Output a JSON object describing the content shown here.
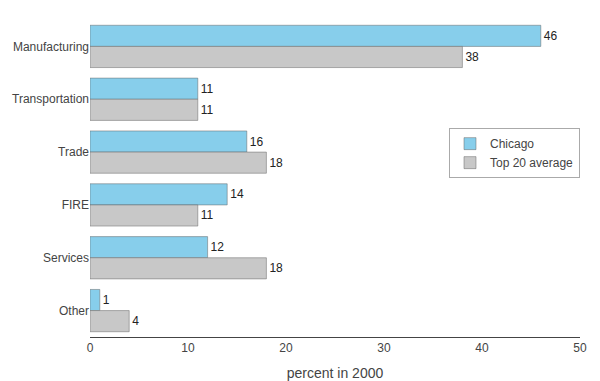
{
  "chart_data": {
    "type": "bar",
    "orientation": "horizontal",
    "categories": [
      "Manufacturing",
      "Transportation",
      "Trade",
      "FIRE",
      "Services",
      "Other"
    ],
    "series": [
      {
        "name": "Chicago",
        "color": "#87CEEB",
        "values": [
          46,
          11,
          16,
          14,
          12,
          1
        ]
      },
      {
        "name": "Top 20 average",
        "color": "#C8C8C8",
        "values": [
          38,
          11,
          18,
          11,
          18,
          4
        ]
      }
    ],
    "xlabel": "percent in 2000",
    "xlim": [
      0,
      50
    ],
    "xticks": [
      0,
      10,
      20,
      30,
      40,
      50
    ],
    "data_labels": true,
    "legend": "right",
    "grid": false
  }
}
